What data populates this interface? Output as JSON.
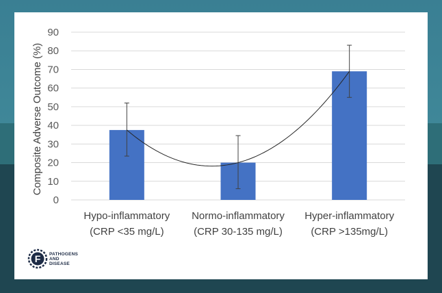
{
  "chart_data": {
    "type": "bar",
    "title": "",
    "xlabel": "",
    "ylabel": "Composite Adverse Outcome (%)",
    "ylim": [
      0,
      90
    ],
    "yticks": [
      0,
      10,
      20,
      30,
      40,
      50,
      60,
      70,
      80,
      90
    ],
    "grid": true,
    "categories": [
      [
        "Hypo-inflammatory",
        "(CRP <35 mg/L)"
      ],
      [
        "Normo-inflammatory",
        "(CRP 30-135 mg/L)"
      ],
      [
        "Hyper-inflammatory",
        "(CRP >135mg/L)"
      ]
    ],
    "values": [
      37.5,
      20,
      69
    ],
    "error_low": [
      23.5,
      6,
      55
    ],
    "error_high": [
      52,
      34.5,
      83
    ],
    "trendline": "polynomial",
    "bar_color": "#4472c4"
  },
  "logo": {
    "letter": "F",
    "text_line1": "PATHOGENS",
    "text_line2": "AND DISEASE",
    "color": "#1d2b45"
  }
}
